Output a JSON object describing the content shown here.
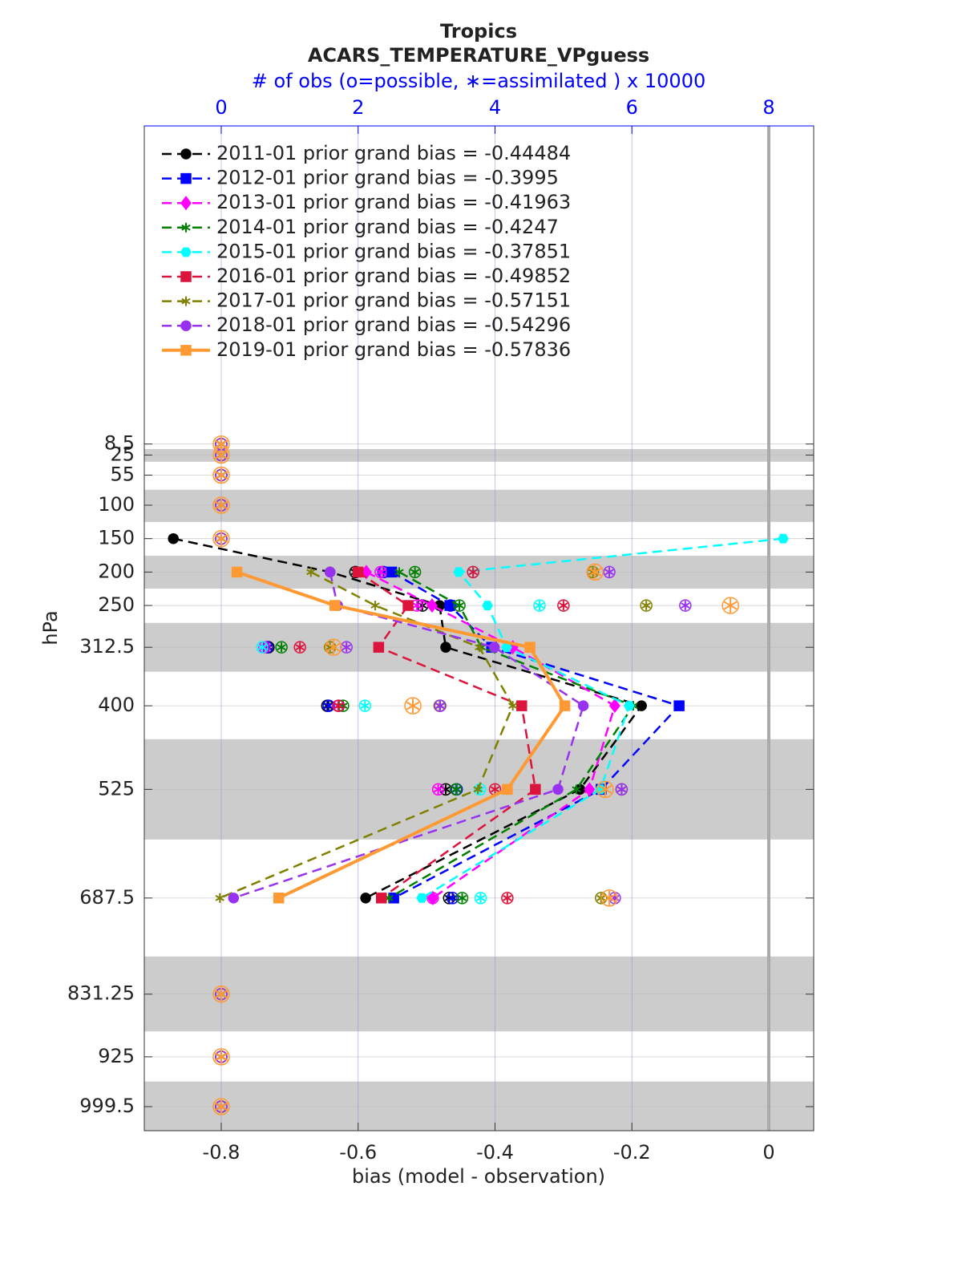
{
  "chart_data": {
    "type": "line",
    "orientation": "horizontal",
    "title": "Tropics",
    "subtitle": "ACARS_TEMPERATURE_VPguess",
    "x2_label": "# of obs (o=possible, ∗=assimilated ) x 10000",
    "x_label": "bias (model - observation)",
    "y_label": "hPa",
    "xlim": [
      -0.9124,
      0.0656
    ],
    "xticks": [
      -0.8,
      -0.6,
      -0.4,
      -0.2,
      0
    ],
    "x2lim": [
      -1.124,
      8.656
    ],
    "x2ticks": [
      0,
      2,
      4,
      6,
      8
    ],
    "ylim": [
      1035.5,
      -467.3
    ],
    "y_direction": "reverse",
    "y": [
      8.5,
      25,
      55,
      100,
      150,
      200,
      250,
      312.5,
      400,
      525,
      687.5,
      831.25,
      925,
      999.5
    ],
    "yticks": [
      8.5,
      25,
      55,
      100,
      150,
      200,
      250,
      312.5,
      400,
      525,
      687.5,
      831.25,
      925,
      999.5
    ],
    "shaded_layers": [
      [
        16,
        35
      ],
      [
        77,
        125
      ],
      [
        175.6,
        224.7
      ],
      [
        276,
        349
      ],
      [
        450,
        600
      ],
      [
        775,
        887
      ],
      [
        962,
        1035.5
      ]
    ],
    "reference_line_x": 0,
    "grid": true,
    "legend": "upper left",
    "series": [
      {
        "name": "2011-01 prior grand bias = -0.44484",
        "color": "#000000",
        "marker": "circle",
        "dash": true,
        "values": [
          null,
          null,
          null,
          null,
          -0.87,
          -0.641,
          -0.481,
          -0.472,
          -0.186,
          -0.276,
          -0.589,
          null,
          null,
          null
        ],
        "obs": [
          0,
          0,
          0,
          0,
          0,
          1.96,
          2.94,
          0.69,
          1.55,
          3.28,
          3.33,
          0,
          0,
          0
        ]
      },
      {
        "name": "2012-01 prior grand bias = -0.3995",
        "color": "#0000ff",
        "marker": "square",
        "dash": true,
        "values": [
          null,
          null,
          null,
          null,
          null,
          -0.551,
          -0.466,
          -0.405,
          -0.131,
          -0.245,
          -0.548,
          null,
          null,
          null
        ],
        "obs": [
          0,
          0,
          0,
          0,
          0,
          2.37,
          3.35,
          0.67,
          1.57,
          3.44,
          3.38,
          0,
          0,
          0
        ]
      },
      {
        "name": "2013-01 prior grand bias = -0.41963",
        "color": "#ff00ff",
        "marker": "diamond",
        "dash": true,
        "values": [
          null,
          null,
          null,
          null,
          null,
          -0.588,
          -0.492,
          -0.374,
          -0.225,
          -0.262,
          -0.491,
          null,
          null,
          null
        ],
        "obs": [
          0,
          0,
          0,
          0,
          0,
          2.33,
          2.86,
          0.63,
          1.72,
          3.17,
          3.09,
          0,
          0,
          0
        ]
      },
      {
        "name": "2014-01 prior grand bias = -0.4247",
        "color": "#008000",
        "marker": "hexagram",
        "dash": true,
        "values": [
          null,
          null,
          null,
          null,
          null,
          -0.54,
          -0.452,
          -0.42,
          -0.198,
          -0.281,
          -0.555,
          null,
          null,
          null
        ],
        "obs": [
          0,
          0,
          0,
          0,
          0,
          2.83,
          3.48,
          0.88,
          1.78,
          3.43,
          3.52,
          0,
          0,
          0
        ]
      },
      {
        "name": "2015-01 prior grand bias = -0.37851",
        "color": "#00ffff",
        "marker": "hexagon",
        "dash": true,
        "values": [
          null,
          null,
          null,
          null,
          0.021,
          -0.453,
          -0.411,
          -0.383,
          -0.204,
          -0.246,
          -0.507,
          null,
          null,
          null
        ],
        "obs": [
          0,
          0,
          0,
          0,
          0,
          3.68,
          4.65,
          0.6,
          2.1,
          3.78,
          3.79,
          0,
          0,
          0
        ]
      },
      {
        "name": "2016-01 prior grand bias = -0.49852",
        "color": "#dc143c",
        "marker": "square",
        "dash": true,
        "values": [
          null,
          null,
          null,
          null,
          null,
          -0.6,
          -0.527,
          -0.57,
          -0.361,
          -0.341,
          -0.566,
          null,
          null,
          null
        ],
        "obs": [
          0,
          0,
          0,
          0,
          0,
          3.68,
          5.0,
          1.15,
          1.71,
          4.0,
          4.18,
          0,
          0,
          0
        ]
      },
      {
        "name": "2017-01 prior grand bias = -0.57151",
        "color": "#808000",
        "marker": "hexagram",
        "dash": true,
        "values": [
          null,
          null,
          null,
          null,
          null,
          -0.669,
          -0.575,
          -0.423,
          -0.374,
          -0.425,
          -0.802,
          null,
          null,
          null
        ],
        "obs": [
          0,
          0,
          0,
          0,
          0,
          5.43,
          6.21,
          1.59,
          3.19,
          5.85,
          5.55,
          0,
          0,
          0
        ]
      },
      {
        "name": "2018-01 prior grand bias = -0.54296",
        "color": "#9932f0",
        "marker": "circle",
        "dash": true,
        "values": [
          null,
          null,
          null,
          null,
          null,
          -0.641,
          -0.63,
          -0.401,
          -0.271,
          -0.308,
          -0.782,
          null,
          null,
          null
        ],
        "obs": [
          0,
          0,
          0,
          0,
          0,
          5.67,
          6.78,
          1.83,
          3.2,
          5.85,
          5.75,
          0,
          0,
          0
        ]
      },
      {
        "name": "2019-01 prior grand bias = -0.57836",
        "color": "#ff9933",
        "marker": "square",
        "dash": false,
        "values": [
          null,
          null,
          null,
          null,
          null,
          -0.777,
          -0.634,
          -0.349,
          -0.298,
          -0.382,
          -0.716,
          null,
          null,
          null
        ],
        "obs": [
          0,
          0,
          0,
          0,
          0,
          5.46,
          7.44,
          1.64,
          2.8,
          5.61,
          5.67,
          0,
          0,
          0
        ]
      }
    ]
  }
}
